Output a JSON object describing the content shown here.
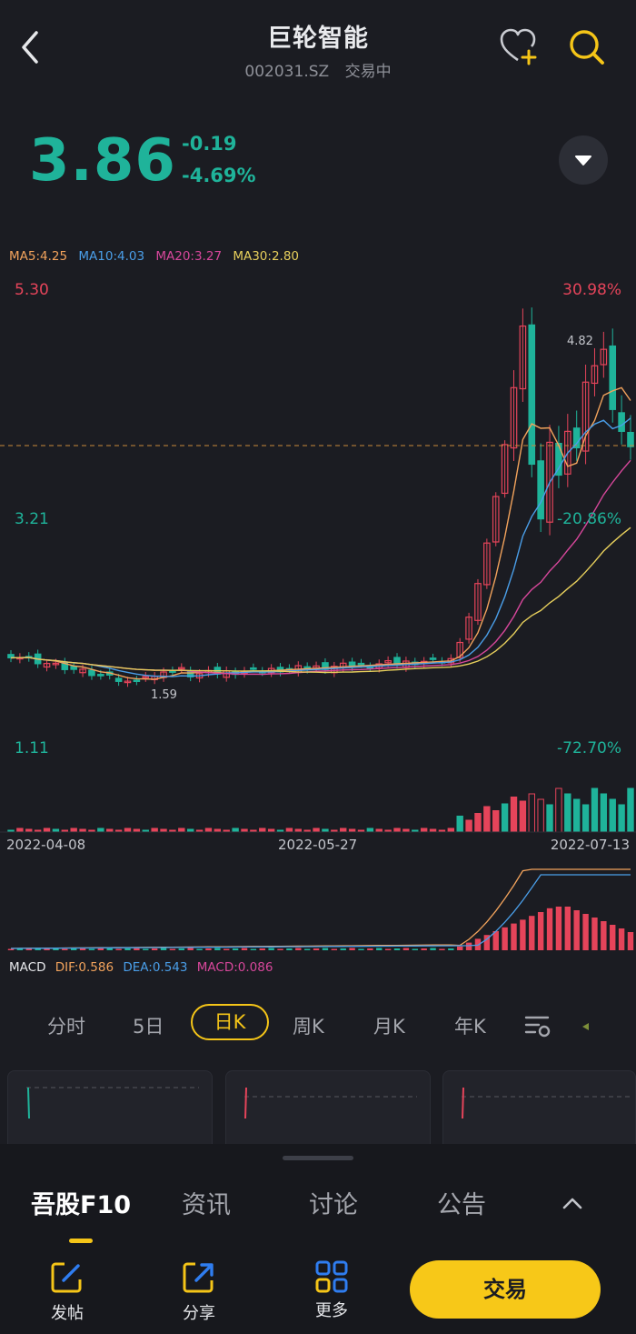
{
  "header": {
    "title": "巨轮智能",
    "code": "002031.SZ",
    "status": "交易中"
  },
  "quote": {
    "price": "3.86",
    "change": "-0.19",
    "change_pct": "-4.69%"
  },
  "indicators": {
    "ma5": "MA5:4.25",
    "ma10": "MA10:4.03",
    "ma20": "MA20:3.27",
    "ma30": "MA30:2.80"
  },
  "colors": {
    "up": "#e5445a",
    "down": "#1fb39a",
    "ma5": "#f2a35c",
    "ma10": "#4a9ee8",
    "ma20": "#d7479b",
    "ma30": "#e7cf5c",
    "accent": "#f5c518"
  },
  "chart_data": {
    "type": "candlestick",
    "y_axis_left": [
      "5.30",
      "3.21",
      "1.11"
    ],
    "y_axis_right": [
      "30.98%",
      "-20.86%",
      "-72.70%"
    ],
    "x_dates": [
      "2022-04-08",
      "2022-05-27",
      "2022-07-13"
    ],
    "annotations": {
      "high": "4.82",
      "low": "1.59"
    },
    "last_close": 3.86,
    "ylim": [
      1.11,
      5.3
    ]
  },
  "macd": {
    "label": "MACD",
    "dif": "DIF:0.586",
    "dea": "DEA:0.543",
    "macd": "MACD:0.086"
  },
  "period_tabs": [
    "分时",
    "5日",
    "日K",
    "周K",
    "月K",
    "年K"
  ],
  "active_period": "日K",
  "bottom_tabs": [
    "吾股F10",
    "资讯",
    "讨论",
    "公告"
  ],
  "actions": {
    "post": "发帖",
    "share": "分享",
    "more": "更多",
    "trade": "交易"
  }
}
